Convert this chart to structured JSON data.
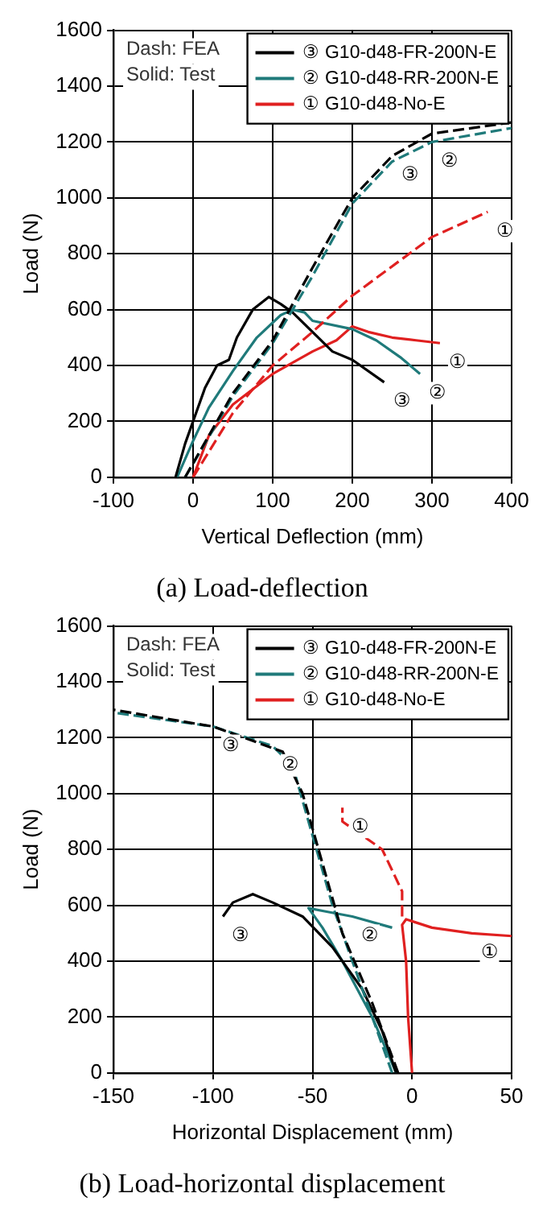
{
  "chart_data": [
    {
      "type": "line",
      "title": "(a) Load-deflection",
      "xlabel": "Vertical Deflection (mm)",
      "ylabel": "Load (N)",
      "xlim": [
        -100,
        400
      ],
      "xticks": [
        -100,
        0,
        100,
        200,
        300,
        400
      ],
      "ylim": [
        0,
        1600
      ],
      "yticks": [
        0,
        200,
        400,
        600,
        800,
        1000,
        1200,
        1400,
        1600
      ],
      "grid": true,
      "legend": "top right",
      "marker": "none",
      "annotations": [
        "Dash: FEA",
        "Solid: Test",
        {
          "text": "③",
          "x": 250,
          "y": 1150
        },
        {
          "text": "②",
          "x": 300,
          "y": 1200
        },
        {
          "text": "①",
          "x": 370,
          "y": 950
        },
        {
          "text": "③",
          "x": 240,
          "y": 340
        },
        {
          "text": "②",
          "x": 285,
          "y": 370
        },
        {
          "text": "①",
          "x": 310,
          "y": 480
        }
      ],
      "series": [
        {
          "name": "③ G10-d48-FR-200N-E",
          "color": "#000000",
          "line_style": "dashed",
          "x": [
            -10,
            50,
            100,
            150,
            200,
            250,
            300,
            400
          ],
          "values": [
            0,
            300,
            490,
            750,
            1000,
            1150,
            1230,
            1270
          ]
        },
        {
          "name": "② G10-d48-RR-200N-E",
          "color": "#1f7a7a",
          "line_style": "dashed",
          "x": [
            -10,
            50,
            100,
            150,
            200,
            250,
            300,
            400
          ],
          "values": [
            0,
            290,
            480,
            720,
            980,
            1130,
            1200,
            1250
          ]
        },
        {
          "name": "① G10-d48-No-E",
          "color": "#e02020",
          "line_style": "dashed",
          "x": [
            0,
            50,
            100,
            150,
            200,
            300,
            370
          ],
          "values": [
            0,
            230,
            400,
            520,
            650,
            860,
            950
          ]
        },
        {
          "color": "#000000",
          "line_style": "solid",
          "x": [
            -22,
            -10,
            0,
            15,
            30,
            45,
            55,
            75,
            95,
            110,
            125,
            150,
            175,
            200,
            240
          ],
          "values": [
            0,
            120,
            200,
            320,
            400,
            420,
            500,
            600,
            645,
            620,
            590,
            520,
            450,
            420,
            340
          ]
        },
        {
          "color": "#1f7a7a",
          "line_style": "solid",
          "x": [
            -20,
            0,
            20,
            50,
            80,
            110,
            125,
            140,
            150,
            200,
            230,
            260,
            285
          ],
          "values": [
            0,
            130,
            250,
            380,
            500,
            580,
            600,
            590,
            560,
            530,
            490,
            430,
            370
          ]
        },
        {
          "color": "#e02020",
          "line_style": "solid",
          "x": [
            0,
            20,
            50,
            100,
            150,
            180,
            200,
            220,
            250,
            280,
            310
          ],
          "values": [
            0,
            150,
            260,
            370,
            450,
            490,
            540,
            520,
            500,
            490,
            480
          ]
        }
      ]
    },
    {
      "type": "line",
      "title": "(b) Load-horizontal displacement",
      "xlabel": "Horizontal Displacement (mm)",
      "ylabel": "Load (N)",
      "xlim": [
        -150,
        50
      ],
      "xticks": [
        -150,
        -100,
        -50,
        0,
        50
      ],
      "ylim": [
        0,
        1600
      ],
      "yticks": [
        0,
        200,
        400,
        600,
        800,
        1000,
        1200,
        1400,
        1600
      ],
      "grid": true,
      "legend": "top right",
      "marker": "none",
      "annotations": [
        "Dash: FEA",
        "Solid: Test",
        {
          "text": "③",
          "x": -100,
          "y": 1240
        },
        {
          "text": "②",
          "x": -70,
          "y": 1170
        },
        {
          "text": "①",
          "x": -35,
          "y": 950
        },
        {
          "text": "③",
          "x": -95,
          "y": 560
        },
        {
          "text": "②",
          "x": -30,
          "y": 560
        },
        {
          "text": "①",
          "x": 30,
          "y": 500
        }
      ],
      "series": [
        {
          "name": "③ G10-d48-FR-200N-E",
          "color": "#000000",
          "line_style": "dashed",
          "x": [
            -7,
            -20,
            -35,
            -45,
            -55,
            -65,
            -100,
            -150
          ],
          "values": [
            0,
            250,
            500,
            750,
            1000,
            1150,
            1240,
            1300
          ]
        },
        {
          "name": "② G10-d48-RR-200N-E",
          "color": "#1f7a7a",
          "line_style": "dashed",
          "x": [
            -10,
            -25,
            -40,
            -50,
            -60,
            -70,
            -100,
            -150
          ],
          "values": [
            0,
            300,
            600,
            850,
            1100,
            1170,
            1240,
            1290
          ]
        },
        {
          "name": "① G10-d48-No-E",
          "color": "#e02020",
          "line_style": "dashed",
          "x": [
            -5,
            -5,
            -15,
            -35,
            -35
          ],
          "values": [
            560,
            650,
            800,
            900,
            950
          ]
        },
        {
          "color": "#000000",
          "line_style": "solid",
          "x": [
            -8,
            -15,
            -25,
            -40,
            -55,
            -70,
            -80,
            -90,
            -95
          ],
          "values": [
            0,
            150,
            300,
            450,
            560,
            610,
            640,
            610,
            560
          ]
        },
        {
          "color": "#1f7a7a",
          "line_style": "solid",
          "x": [
            -8,
            -20,
            -35,
            -45,
            -52,
            -45,
            -30,
            -10
          ],
          "values": [
            0,
            200,
            400,
            520,
            590,
            580,
            560,
            520
          ]
        },
        {
          "color": "#e02020",
          "line_style": "solid",
          "x": [
            0,
            -2,
            -3,
            -5,
            -3,
            10,
            30,
            50
          ],
          "values": [
            0,
            200,
            400,
            530,
            550,
            520,
            500,
            490
          ]
        }
      ]
    }
  ]
}
